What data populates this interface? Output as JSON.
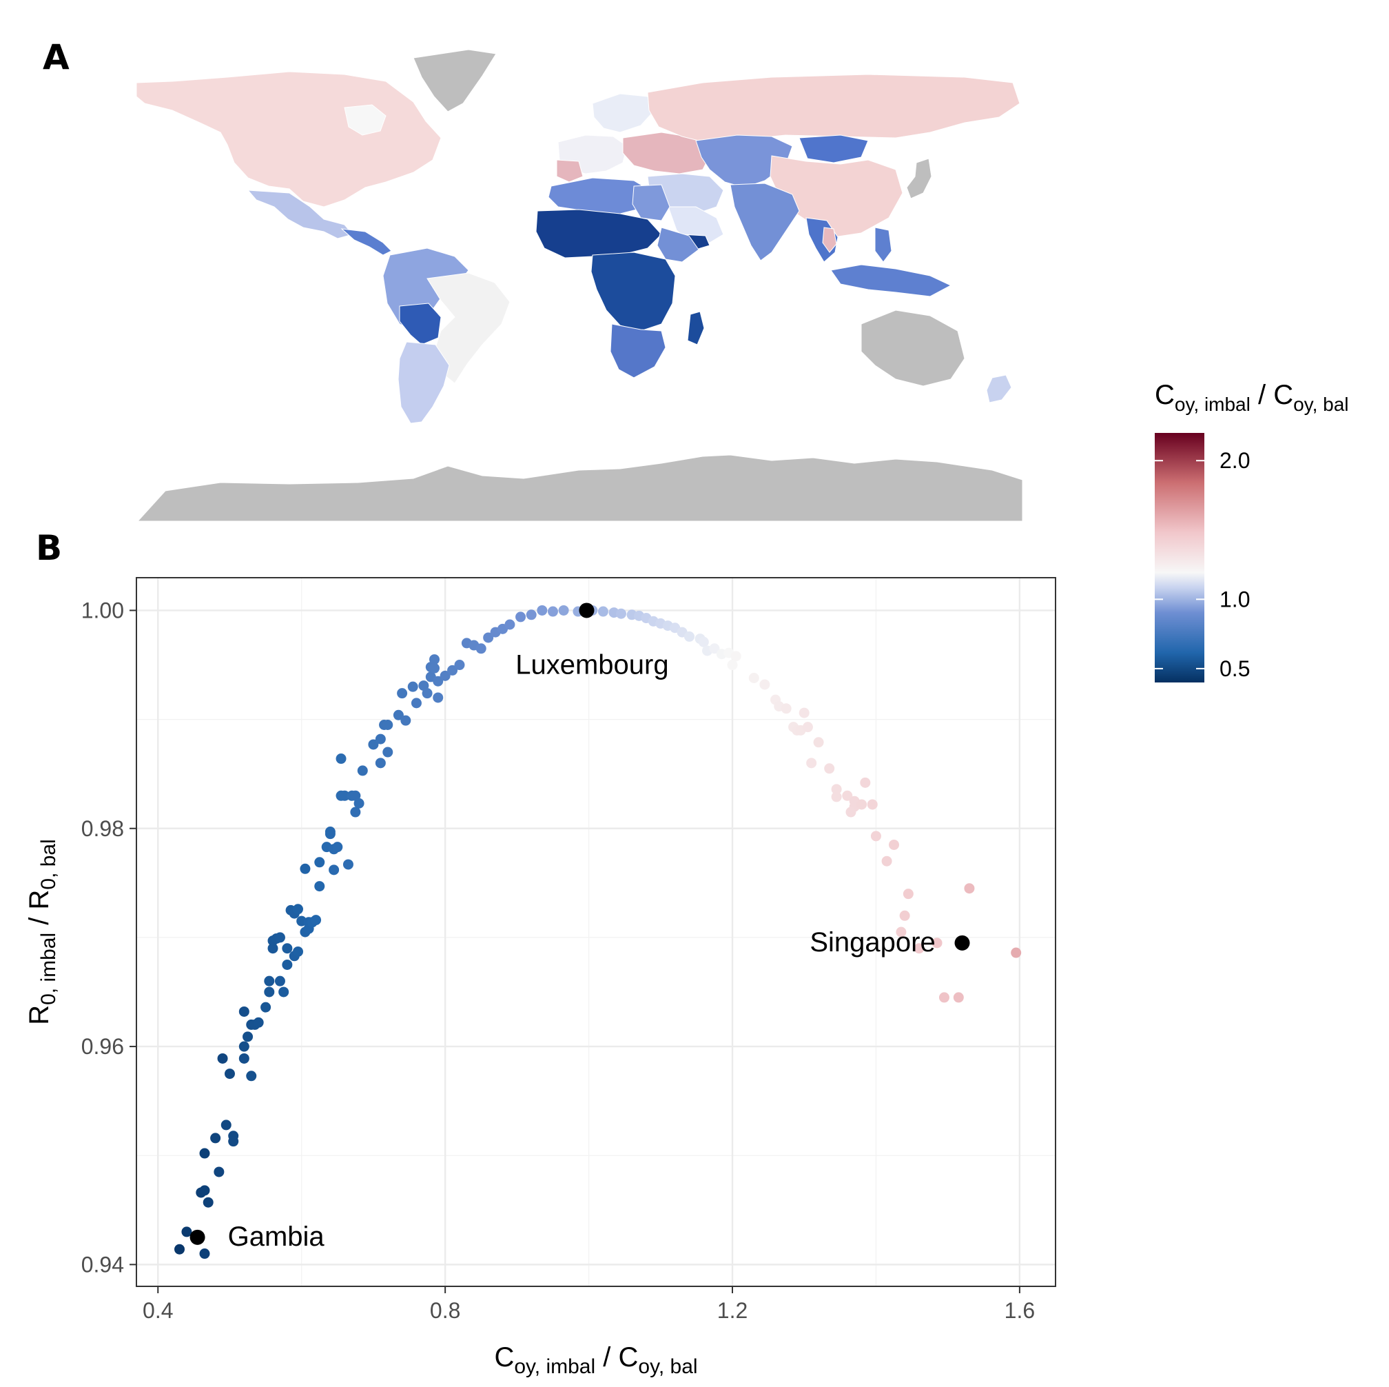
{
  "panels": {
    "a_label": "A",
    "b_label": "B"
  },
  "legend": {
    "title_main": "C",
    "title_sub1": "oy, imbal",
    "title_slash": " / C",
    "title_sub2": "oy, bal",
    "range": [
      0.4,
      2.2
    ],
    "midpoint": 1.0,
    "ticks": [
      "2.0",
      "1.0",
      "0.5"
    ],
    "tick_values": [
      2.0,
      1.0,
      0.5
    ],
    "colors": {
      "low": "#053061",
      "mid": "#f7f7f7",
      "high": "#67001f"
    }
  },
  "map": {
    "colors": {
      "na_data": "#bebebe",
      "north_america": "#f5dada",
      "russia_china": "#f3d3d3",
      "mexico": "#b8c4ea",
      "central_america": "#5a7ed0",
      "south_america_n": "#8ea5e0",
      "brazil": "#f2f2f2",
      "argentina": "#c4ceef",
      "bolivia": "#2f5bb5",
      "north_africa": "#6d8bd7",
      "sahel": "#163f8e",
      "central_africa": "#1c4c9c",
      "southern_africa": "#5577c9",
      "egypt": "#7f99db",
      "middle_east": "#cad4f0",
      "arabia": "#e0e6f7",
      "europe_w": "#f0f0f6",
      "europe_e": "#e5b6bd",
      "scandinavia": "#e9edf7",
      "central_asia": "#7a94d9",
      "mongolia": "#5075cc",
      "south_asia": "#7390d6",
      "se_asia": "#4e74cb",
      "thailand": "#e8b9be",
      "indonesia": "#5e80d0",
      "japan": "#bebebe",
      "new_zealand": "#c8d2ef",
      "greenland": "#bebebe",
      "australia": "#bebebe",
      "antarctica": "#bebebe"
    }
  },
  "chart_data": {
    "type": "scatter",
    "xlabel_main": "C",
    "xlabel_sub1": "oy, imbal",
    "xlabel_slash": " / C",
    "xlabel_sub2": "oy, bal",
    "ylabel_main": "R",
    "ylabel_sub1": "0, imbal",
    "ylabel_slash": " / R",
    "ylabel_sub2": "0, bal",
    "xlim": [
      0.37,
      1.65
    ],
    "ylim": [
      0.938,
      1.003
    ],
    "x_ticks": [
      0.4,
      0.8,
      1.2,
      1.6
    ],
    "x_tick_labels": [
      "0.4",
      "0.8",
      "1.2",
      "1.6"
    ],
    "y_ticks": [
      0.94,
      0.96,
      0.98,
      1.0
    ],
    "y_tick_labels": [
      "0.94",
      "0.96",
      "0.98",
      "1.00"
    ],
    "grid": true,
    "points": [
      [
        0.43,
        0.9414
      ],
      [
        0.44,
        0.943
      ],
      [
        0.465,
        0.941
      ],
      [
        0.46,
        0.9466
      ],
      [
        0.465,
        0.9468
      ],
      [
        0.47,
        0.9457
      ],
      [
        0.465,
        0.9502
      ],
      [
        0.48,
        0.9516
      ],
      [
        0.485,
        0.9485
      ],
      [
        0.495,
        0.9528
      ],
      [
        0.505,
        0.9518
      ],
      [
        0.505,
        0.9513
      ],
      [
        0.49,
        0.9589
      ],
      [
        0.5,
        0.9575
      ],
      [
        0.52,
        0.96
      ],
      [
        0.52,
        0.9589
      ],
      [
        0.525,
        0.9609
      ],
      [
        0.52,
        0.9632
      ],
      [
        0.53,
        0.962
      ],
      [
        0.535,
        0.962
      ],
      [
        0.54,
        0.9622
      ],
      [
        0.53,
        0.9573
      ],
      [
        0.55,
        0.9636
      ],
      [
        0.555,
        0.965
      ],
      [
        0.555,
        0.966
      ],
      [
        0.56,
        0.969
      ],
      [
        0.56,
        0.9697
      ],
      [
        0.565,
        0.9699
      ],
      [
        0.57,
        0.97
      ],
      [
        0.57,
        0.966
      ],
      [
        0.575,
        0.965
      ],
      [
        0.58,
        0.969
      ],
      [
        0.58,
        0.9675
      ],
      [
        0.585,
        0.9725
      ],
      [
        0.59,
        0.9683
      ],
      [
        0.59,
        0.9722
      ],
      [
        0.595,
        0.9726
      ],
      [
        0.595,
        0.9687
      ],
      [
        0.6,
        0.9715
      ],
      [
        0.605,
        0.9705
      ],
      [
        0.605,
        0.9763
      ],
      [
        0.61,
        0.9714
      ],
      [
        0.61,
        0.9708
      ],
      [
        0.615,
        0.9714
      ],
      [
        0.62,
        0.9716
      ],
      [
        0.625,
        0.9747
      ],
      [
        0.625,
        0.9769
      ],
      [
        0.635,
        0.9783
      ],
      [
        0.64,
        0.9797
      ],
      [
        0.64,
        0.9795
      ],
      [
        0.645,
        0.9781
      ],
      [
        0.645,
        0.9762
      ],
      [
        0.65,
        0.9783
      ],
      [
        0.655,
        0.983
      ],
      [
        0.66,
        0.983
      ],
      [
        0.665,
        0.9767
      ],
      [
        0.67,
        0.983
      ],
      [
        0.675,
        0.983
      ],
      [
        0.68,
        0.9823
      ],
      [
        0.675,
        0.9815
      ],
      [
        0.655,
        0.9864
      ],
      [
        0.685,
        0.9853
      ],
      [
        0.7,
        0.9877
      ],
      [
        0.71,
        0.9882
      ],
      [
        0.715,
        0.9895
      ],
      [
        0.72,
        0.9895
      ],
      [
        0.72,
        0.987
      ],
      [
        0.71,
        0.986
      ],
      [
        0.735,
        0.9904
      ],
      [
        0.74,
        0.9924
      ],
      [
        0.745,
        0.9899
      ],
      [
        0.755,
        0.993
      ],
      [
        0.76,
        0.9915
      ],
      [
        0.77,
        0.9931
      ],
      [
        0.775,
        0.9924
      ],
      [
        0.78,
        0.9939
      ],
      [
        0.78,
        0.9948
      ],
      [
        0.785,
        0.9955
      ],
      [
        0.785,
        0.9947
      ],
      [
        0.79,
        0.9935
      ],
      [
        0.79,
        0.992
      ],
      [
        0.8,
        0.994
      ],
      [
        0.81,
        0.9945
      ],
      [
        0.82,
        0.995
      ],
      [
        0.83,
        0.997
      ],
      [
        0.84,
        0.9968
      ],
      [
        0.85,
        0.9965
      ],
      [
        0.86,
        0.9975
      ],
      [
        0.87,
        0.998
      ],
      [
        0.88,
        0.9983
      ],
      [
        0.89,
        0.9987
      ],
      [
        0.905,
        0.9994
      ],
      [
        0.92,
        0.9996
      ],
      [
        0.935,
        1.0
      ],
      [
        0.95,
        0.9999
      ],
      [
        0.965,
        1.0
      ],
      [
        0.985,
        0.9999
      ],
      [
        1.005,
        1.0
      ],
      [
        1.02,
        0.9999
      ],
      [
        1.035,
        0.9998
      ],
      [
        1.045,
        0.9997
      ],
      [
        1.06,
        0.9996
      ],
      [
        1.07,
        0.9995
      ],
      [
        1.08,
        0.9993
      ],
      [
        1.09,
        0.999
      ],
      [
        1.1,
        0.9988
      ],
      [
        1.11,
        0.9986
      ],
      [
        1.12,
        0.9984
      ],
      [
        1.13,
        0.998
      ],
      [
        1.14,
        0.9976
      ],
      [
        1.155,
        0.9974
      ],
      [
        1.16,
        0.9971
      ],
      [
        1.165,
        0.9963
      ],
      [
        1.175,
        0.9965
      ],
      [
        1.185,
        0.996
      ],
      [
        1.195,
        0.9961
      ],
      [
        1.2,
        0.995
      ],
      [
        1.205,
        0.9958
      ],
      [
        1.23,
        0.9938
      ],
      [
        1.245,
        0.9932
      ],
      [
        1.26,
        0.9918
      ],
      [
        1.265,
        0.9912
      ],
      [
        1.275,
        0.991
      ],
      [
        1.285,
        0.9893
      ],
      [
        1.29,
        0.989
      ],
      [
        1.295,
        0.989
      ],
      [
        1.3,
        0.9906
      ],
      [
        1.305,
        0.9893
      ],
      [
        1.32,
        0.9879
      ],
      [
        1.31,
        0.986
      ],
      [
        1.335,
        0.9855
      ],
      [
        1.345,
        0.9836
      ],
      [
        1.345,
        0.9829
      ],
      [
        1.36,
        0.983
      ],
      [
        1.37,
        0.982
      ],
      [
        1.365,
        0.9815
      ],
      [
        1.37,
        0.9825
      ],
      [
        1.38,
        0.9822
      ],
      [
        1.385,
        0.9842
      ],
      [
        1.395,
        0.9822
      ],
      [
        1.4,
        0.9793
      ],
      [
        1.415,
        0.977
      ],
      [
        1.425,
        0.9785
      ],
      [
        1.445,
        0.974
      ],
      [
        1.44,
        0.972
      ],
      [
        1.435,
        0.9705
      ],
      [
        1.46,
        0.969
      ],
      [
        1.485,
        0.9695
      ],
      [
        1.495,
        0.9645
      ],
      [
        1.515,
        0.9645
      ],
      [
        1.53,
        0.9745
      ],
      [
        1.595,
        0.9686
      ]
    ],
    "highlighted": [
      {
        "label": "Gambia",
        "x": 0.455,
        "y": 0.9425
      },
      {
        "label": "Luxembourg",
        "x": 0.997,
        "y": 1.0
      },
      {
        "label": "Singapore",
        "x": 1.52,
        "y": 0.9695
      }
    ]
  }
}
